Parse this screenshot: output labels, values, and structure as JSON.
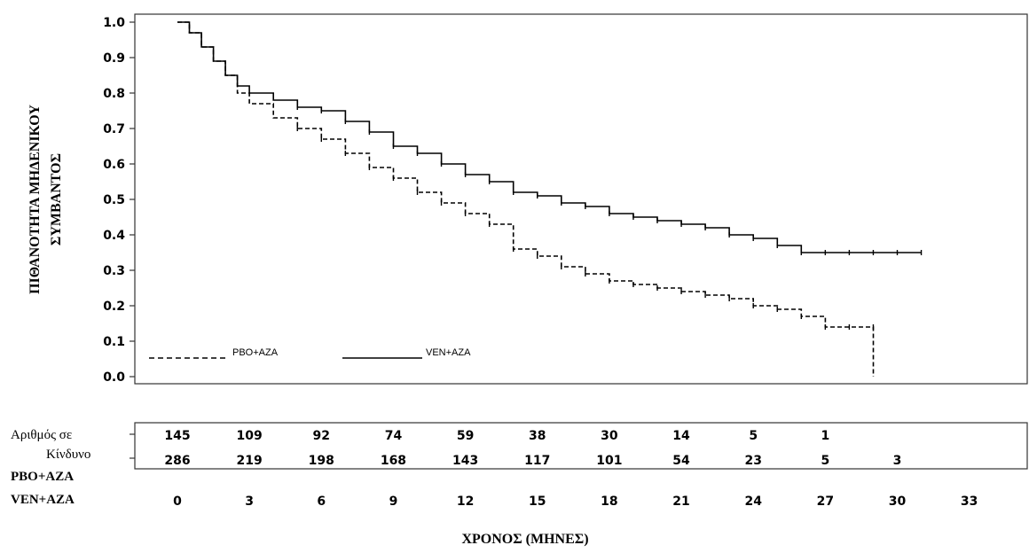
{
  "chart_data": {
    "type": "line",
    "chart_kind": "kaplan-meier",
    "xlabel": "ΧΡΟΝΟΣ (ΜΗΝΕΣ)",
    "ylabel_line1": "ΠΙΘΑΝΟΤΗΤΑ ΜΗΔΕΝΙΚΟΥ",
    "ylabel_line2": "ΣΥΜΒΑΝΤΟΣ",
    "xlim": [
      0,
      33
    ],
    "ylim": [
      0,
      1.0
    ],
    "x_ticks": [
      "0",
      "3",
      "6",
      "9",
      "12",
      "15",
      "18",
      "21",
      "24",
      "27",
      "30",
      "33"
    ],
    "y_ticks": [
      "0.0",
      "0.1",
      "0.2",
      "0.3",
      "0.4",
      "0.5",
      "0.6",
      "0.7",
      "0.8",
      "0.9",
      "1.0"
    ],
    "legend_position": "bottom-left",
    "series": [
      {
        "name": "PBO+AZA",
        "style": "dashed",
        "color": "#000000",
        "points": [
          [
            0,
            1.0
          ],
          [
            0.5,
            0.97
          ],
          [
            1,
            0.93
          ],
          [
            1.5,
            0.89
          ],
          [
            2,
            0.85
          ],
          [
            2.5,
            0.8
          ],
          [
            3,
            0.77
          ],
          [
            4,
            0.73
          ],
          [
            5,
            0.7
          ],
          [
            6,
            0.67
          ],
          [
            7,
            0.63
          ],
          [
            8,
            0.59
          ],
          [
            9,
            0.56
          ],
          [
            10,
            0.52
          ],
          [
            11,
            0.49
          ],
          [
            12,
            0.46
          ],
          [
            13,
            0.43
          ],
          [
            14,
            0.36
          ],
          [
            15,
            0.34
          ],
          [
            16,
            0.31
          ],
          [
            17,
            0.29
          ],
          [
            18,
            0.27
          ],
          [
            19,
            0.26
          ],
          [
            20,
            0.25
          ],
          [
            21,
            0.24
          ],
          [
            22,
            0.23
          ],
          [
            23,
            0.22
          ],
          [
            24,
            0.2
          ],
          [
            25,
            0.19
          ],
          [
            26,
            0.17
          ],
          [
            27,
            0.14
          ],
          [
            28,
            0.14
          ],
          [
            29,
            0.14
          ],
          [
            29,
            0.0
          ]
        ]
      },
      {
        "name": "VEN+AZA",
        "style": "solid",
        "color": "#000000",
        "points": [
          [
            0,
            1.0
          ],
          [
            0.5,
            0.97
          ],
          [
            1,
            0.93
          ],
          [
            1.5,
            0.89
          ],
          [
            2,
            0.85
          ],
          [
            2.5,
            0.82
          ],
          [
            3,
            0.8
          ],
          [
            4,
            0.78
          ],
          [
            5,
            0.76
          ],
          [
            6,
            0.75
          ],
          [
            7,
            0.72
          ],
          [
            8,
            0.69
          ],
          [
            9,
            0.65
          ],
          [
            10,
            0.63
          ],
          [
            11,
            0.6
          ],
          [
            12,
            0.57
          ],
          [
            13,
            0.55
          ],
          [
            14,
            0.52
          ],
          [
            15,
            0.51
          ],
          [
            16,
            0.49
          ],
          [
            17,
            0.48
          ],
          [
            18,
            0.46
          ],
          [
            19,
            0.45
          ],
          [
            20,
            0.44
          ],
          [
            21,
            0.43
          ],
          [
            22,
            0.42
          ],
          [
            23,
            0.4
          ],
          [
            24,
            0.39
          ],
          [
            25,
            0.37
          ],
          [
            26,
            0.35
          ],
          [
            27,
            0.35
          ],
          [
            28,
            0.35
          ],
          [
            29,
            0.35
          ],
          [
            30,
            0.35
          ],
          [
            31,
            0.35
          ]
        ]
      }
    ],
    "risk_table": {
      "label_line1": "Αριθμός σε",
      "label_line2": "Κίνδυνο",
      "rows": [
        {
          "name": "PBO+AZA",
          "values": [
            "145",
            "109",
            "92",
            "74",
            "59",
            "38",
            "30",
            "14",
            "5",
            "1",
            ""
          ]
        },
        {
          "name": "VEN+AZA",
          "values": [
            "286",
            "219",
            "198",
            "168",
            "143",
            "117",
            "101",
            "54",
            "23",
            "5",
            "3"
          ]
        }
      ]
    }
  }
}
